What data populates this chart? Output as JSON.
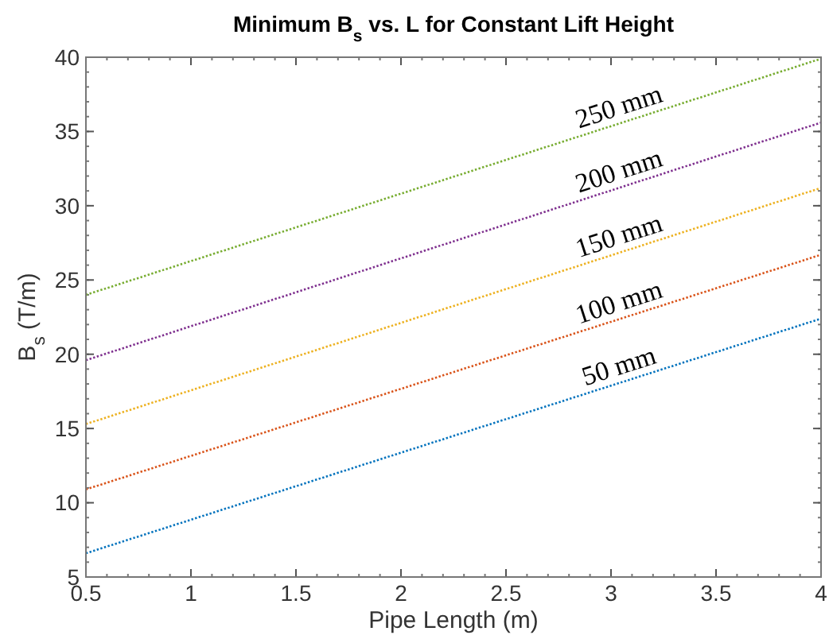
{
  "chart_data": {
    "type": "line",
    "title": "Minimum B$_{s}$ vs. L for Constant Lift Height",
    "xlabel": "Pipe Length (m)",
    "ylabel": "B$_{s}$ (T/m)",
    "x": [
      0.5,
      4
    ],
    "series": [
      {
        "name": "50 mm",
        "color": "#0072bd",
        "values": [
          6.6,
          22.4
        ]
      },
      {
        "name": "100 mm",
        "color": "#d95319",
        "values": [
          10.9,
          26.7
        ]
      },
      {
        "name": "150 mm",
        "color": "#edb120",
        "values": [
          15.3,
          31.2
        ]
      },
      {
        "name": "200 mm",
        "color": "#7e2f8e",
        "values": [
          19.6,
          35.6
        ]
      },
      {
        "name": "250 mm",
        "color": "#77ac30",
        "values": [
          24.0,
          39.9
        ]
      }
    ],
    "xlim": [
      0.5,
      4
    ],
    "ylim": [
      5,
      40
    ],
    "xticks": [
      0.5,
      1,
      1.5,
      2,
      2.5,
      3,
      3.5,
      4
    ],
    "yticks": [
      5,
      10,
      15,
      20,
      25,
      30,
      35,
      40
    ],
    "grid": false,
    "marker": "none",
    "line_style": "dotted"
  }
}
